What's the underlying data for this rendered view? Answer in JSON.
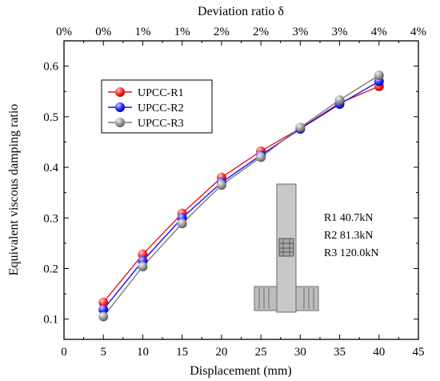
{
  "chart_data": {
    "type": "line",
    "xlabel": "Displacement (mm)",
    "ylabel": "Equivalent viscous damping ratio",
    "top_xlabel": "Deviation ratio δ",
    "xlim": [
      0,
      45
    ],
    "ylim": [
      0.06,
      0.65
    ],
    "x_ticks": [
      0,
      5,
      10,
      15,
      20,
      25,
      30,
      35,
      40,
      45
    ],
    "y_ticks": [
      0.1,
      0.2,
      0.3,
      0.4,
      0.5,
      0.6
    ],
    "top_tick_labels": [
      "0%",
      "0%",
      "1%",
      "1%",
      "2%",
      "2%",
      "3%",
      "3%",
      "4%",
      "4%"
    ],
    "x": [
      5,
      10,
      15,
      20,
      25,
      30,
      35,
      40
    ],
    "series": [
      {
        "name": "UPCC-R1",
        "color": "#e8141b",
        "values": [
          0.133,
          0.228,
          0.309,
          0.38,
          0.432,
          0.477,
          0.527,
          0.56
        ]
      },
      {
        "name": "UPCC-R2",
        "color": "#1515e6",
        "values": [
          0.119,
          0.215,
          0.3,
          0.37,
          0.424,
          0.476,
          0.525,
          0.57
        ]
      },
      {
        "name": "UPCC-R3",
        "color": "#7a7a7a",
        "values": [
          0.105,
          0.204,
          0.289,
          0.365,
          0.42,
          0.479,
          0.533,
          0.582
        ]
      }
    ],
    "legend_position": "top-left",
    "grid": false,
    "annotations": [
      "R1 40.7kN",
      "R2 81.3kN",
      "R3 120.0kN"
    ]
  }
}
